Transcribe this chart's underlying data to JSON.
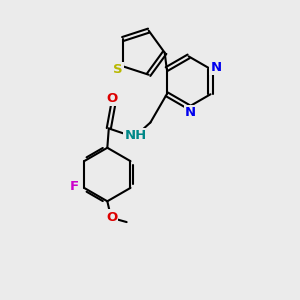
{
  "background_color": "#ebebeb",
  "bond_color": "#000000",
  "bond_width": 1.5,
  "atom_labels": {
    "S": {
      "color": "#b8b800",
      "fontsize": 9.5,
      "fontweight": "bold"
    },
    "N": {
      "color": "#0000ee",
      "fontsize": 9.5,
      "fontweight": "bold"
    },
    "O": {
      "color": "#dd0000",
      "fontsize": 9.5,
      "fontweight": "bold"
    },
    "F": {
      "color": "#cc00cc",
      "fontsize": 9.5,
      "fontweight": "bold"
    },
    "NH": {
      "color": "#008888",
      "fontsize": 9.5,
      "fontweight": "bold"
    }
  },
  "figsize": [
    3.0,
    3.0
  ],
  "dpi": 100
}
